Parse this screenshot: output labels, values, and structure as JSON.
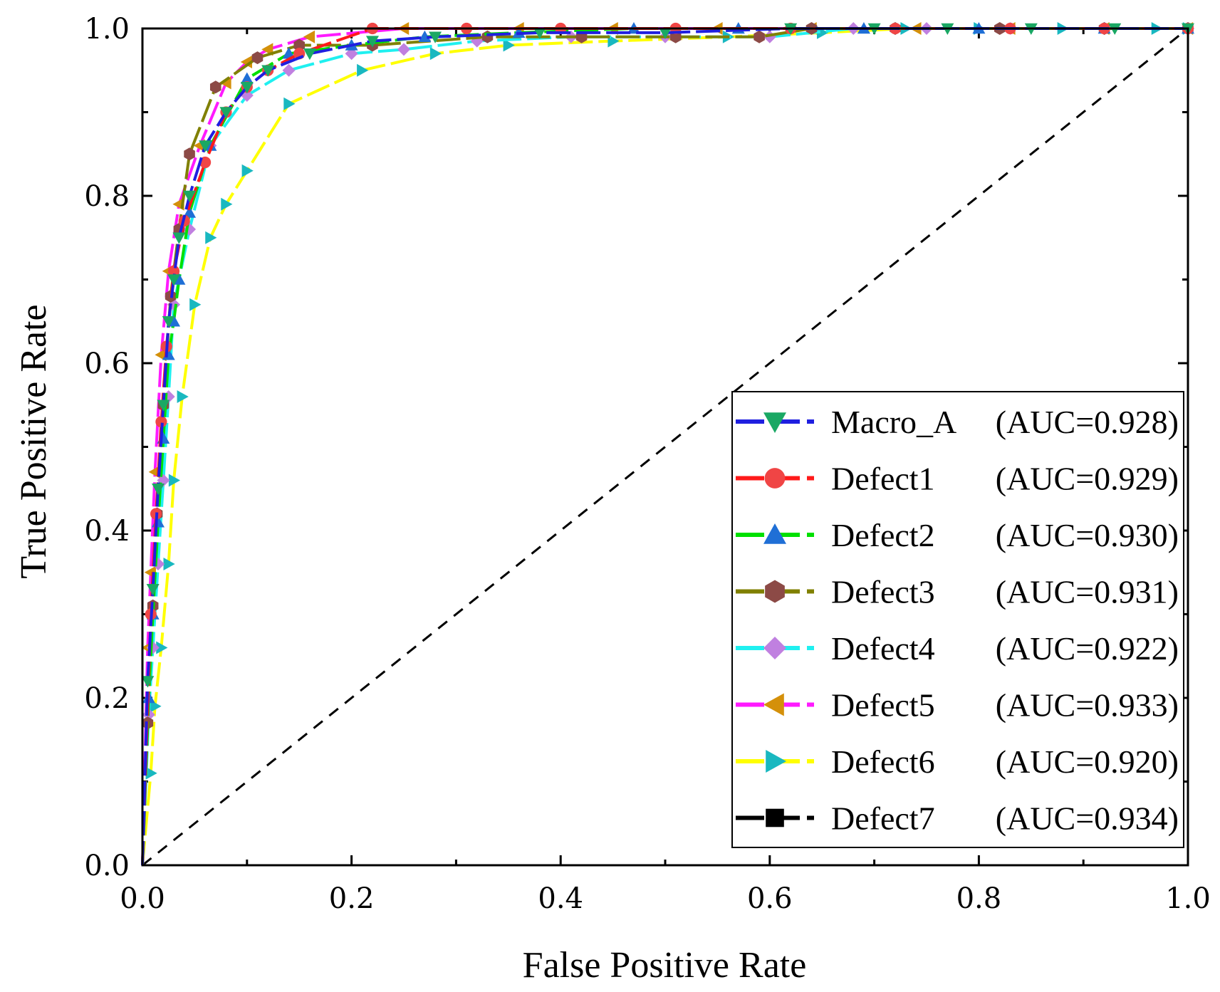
{
  "chart_data": {
    "type": "line",
    "title": "",
    "xlabel": "False Positive Rate",
    "ylabel": "True Positive Rate",
    "xlim": [
      0,
      1
    ],
    "ylim": [
      0,
      1
    ],
    "xticks": [
      "0.0",
      "0.2",
      "0.4",
      "0.6",
      "0.8",
      "1.0"
    ],
    "yticks": [
      "0.0",
      "0.2",
      "0.4",
      "0.6",
      "0.8",
      "1.0"
    ],
    "legend_position": "bottom-right",
    "grid": false,
    "diagonal_reference": true,
    "series": [
      {
        "name": "Macro_A",
        "auc_label": "(AUC=0.928)",
        "line_color": "#1f1fe0",
        "marker_color": "#1aa864",
        "marker": "triangle-down",
        "x": [
          0.0,
          0.005,
          0.01,
          0.015,
          0.02,
          0.025,
          0.03,
          0.035,
          0.045,
          0.06,
          0.08,
          0.1,
          0.12,
          0.16,
          0.22,
          0.28,
          0.38,
          0.5,
          0.62,
          0.7,
          0.77,
          0.85,
          0.93,
          1.0
        ],
        "y": [
          0.0,
          0.22,
          0.33,
          0.45,
          0.55,
          0.65,
          0.7,
          0.75,
          0.8,
          0.86,
          0.9,
          0.93,
          0.95,
          0.97,
          0.985,
          0.99,
          0.995,
          0.995,
          1.0,
          1.0,
          1.0,
          1.0,
          1.0,
          1.0
        ]
      },
      {
        "name": "Defect1",
        "auc_label": "(AUC=0.929)",
        "line_color": "#ff1a1a",
        "marker_color": "#f04545",
        "marker": "circle",
        "x": [
          0.0,
          0.008,
          0.013,
          0.018,
          0.023,
          0.03,
          0.04,
          0.06,
          0.08,
          0.1,
          0.12,
          0.15,
          0.22,
          0.31,
          0.4,
          0.51,
          0.62,
          0.72,
          0.83,
          0.92,
          1.0
        ],
        "y": [
          0.0,
          0.3,
          0.42,
          0.53,
          0.62,
          0.71,
          0.77,
          0.84,
          0.9,
          0.93,
          0.95,
          0.97,
          1.0,
          1.0,
          1.0,
          1.0,
          1.0,
          1.0,
          1.0,
          1.0,
          1.0
        ]
      },
      {
        "name": "Defect2",
        "auc_label": "(AUC=0.930)",
        "line_color": "#00e000",
        "marker_color": "#1f6fd6",
        "marker": "triangle-up",
        "x": [
          0.0,
          0.006,
          0.01,
          0.015,
          0.02,
          0.025,
          0.03,
          0.035,
          0.045,
          0.065,
          0.1,
          0.14,
          0.2,
          0.27,
          0.36,
          0.47,
          0.57,
          0.69,
          0.8,
          0.92,
          1.0
        ],
        "y": [
          0.0,
          0.2,
          0.3,
          0.41,
          0.51,
          0.61,
          0.65,
          0.7,
          0.78,
          0.86,
          0.94,
          0.97,
          0.98,
          0.99,
          0.995,
          1.0,
          1.0,
          1.0,
          1.0,
          1.0,
          1.0
        ]
      },
      {
        "name": "Defect3",
        "auc_label": "(AUC=0.931)",
        "line_color": "#808000",
        "marker_color": "#8c4a46",
        "marker": "hexagon",
        "x": [
          0.0,
          0.005,
          0.01,
          0.014,
          0.02,
          0.027,
          0.035,
          0.045,
          0.07,
          0.11,
          0.15,
          0.22,
          0.33,
          0.42,
          0.51,
          0.59,
          0.64,
          0.72,
          0.82,
          0.92,
          1.0
        ],
        "y": [
          0.0,
          0.17,
          0.31,
          0.42,
          0.55,
          0.68,
          0.76,
          0.85,
          0.93,
          0.965,
          0.98,
          0.98,
          0.99,
          0.99,
          0.99,
          0.99,
          1.0,
          1.0,
          1.0,
          1.0,
          1.0
        ]
      },
      {
        "name": "Defect4",
        "auc_label": "(AUC=0.922)",
        "line_color": "#1ff0f0",
        "marker_color": "#c080e0",
        "marker": "diamond",
        "x": [
          0.0,
          0.006,
          0.01,
          0.015,
          0.02,
          0.025,
          0.03,
          0.045,
          0.065,
          0.1,
          0.14,
          0.2,
          0.25,
          0.32,
          0.41,
          0.5,
          0.6,
          0.68,
          0.75,
          0.83,
          0.92,
          1.0
        ],
        "y": [
          0.0,
          0.18,
          0.26,
          0.36,
          0.46,
          0.56,
          0.67,
          0.76,
          0.86,
          0.92,
          0.95,
          0.97,
          0.975,
          0.985,
          0.99,
          0.99,
          0.99,
          1.0,
          1.0,
          1.0,
          1.0,
          1.0
        ]
      },
      {
        "name": "Defect5",
        "auc_label": "(AUC=0.933)",
        "line_color": "#ff1aff",
        "marker_color": "#d4900a",
        "marker": "triangle-left",
        "x": [
          0.0,
          0.005,
          0.008,
          0.012,
          0.018,
          0.025,
          0.035,
          0.055,
          0.08,
          0.1,
          0.12,
          0.16,
          0.25,
          0.36,
          0.45,
          0.55,
          0.64,
          0.74,
          0.83,
          0.92,
          1.0
        ],
        "y": [
          0.0,
          0.26,
          0.35,
          0.47,
          0.61,
          0.71,
          0.79,
          0.86,
          0.935,
          0.96,
          0.975,
          0.99,
          1.0,
          1.0,
          1.0,
          1.0,
          1.0,
          1.0,
          1.0,
          1.0,
          1.0
        ]
      },
      {
        "name": "Defect6",
        "auc_label": "(AUC=0.920)",
        "line_color": "#ffff00",
        "marker_color": "#19b8c0",
        "marker": "triangle-right",
        "x": [
          0.0,
          0.008,
          0.012,
          0.018,
          0.025,
          0.03,
          0.038,
          0.05,
          0.065,
          0.08,
          0.1,
          0.14,
          0.21,
          0.28,
          0.35,
          0.45,
          0.56,
          0.65,
          0.73,
          0.8,
          0.88,
          0.97,
          1.0
        ],
        "y": [
          0.0,
          0.11,
          0.19,
          0.26,
          0.36,
          0.46,
          0.56,
          0.67,
          0.75,
          0.79,
          0.83,
          0.91,
          0.95,
          0.97,
          0.98,
          0.985,
          0.99,
          0.995,
          1.0,
          1.0,
          1.0,
          1.0,
          1.0
        ]
      },
      {
        "name": "Defect7",
        "auc_label": "(AUC=0.934)",
        "line_color": "#000000",
        "marker_color": "#000000",
        "marker": "square",
        "x": [
          0.0,
          0.003,
          0.006,
          0.01,
          0.015,
          0.02,
          0.035,
          0.06,
          0.1,
          0.14,
          0.2,
          0.38,
          0.54,
          0.64,
          0.81,
          0.91,
          1.0
        ],
        "y": [
          0.0,
          0.2,
          0.5,
          0.67,
          0.71,
          0.79,
          0.9,
          0.96,
          0.98,
          0.99,
          0.995,
          1.0,
          1.0,
          1.0,
          1.0,
          1.0,
          1.0
        ]
      }
    ]
  }
}
